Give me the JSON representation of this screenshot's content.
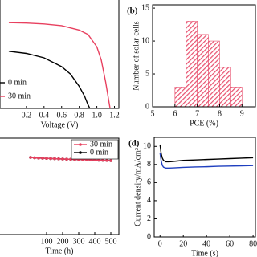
{
  "chart_data": [
    {
      "type": "line",
      "x_label": "Voltage (V)",
      "xlim": [
        -0.1,
        1.25
      ],
      "xticks": [
        0.2,
        0.4,
        0.6,
        0.8,
        {
          "value": 1,
          "label": "1.0"
        },
        1.2
      ],
      "ylim": [
        0,
        25
      ],
      "legend": "lower left",
      "series": [
        {
          "name": "0 min",
          "color": "#000000",
          "x": [
            0,
            0.2,
            0.4,
            0.6,
            0.7,
            0.8,
            0.86,
            0.9,
            0.92
          ],
          "values": [
            13,
            12.5,
            11.5,
            9.5,
            7.8,
            5,
            2.8,
            0.8,
            0
          ]
        },
        {
          "name": "30 min",
          "color": "#e8405f",
          "x": [
            0,
            0.2,
            0.4,
            0.6,
            0.8,
            0.9,
            1,
            1.05,
            1.1,
            1.15
          ],
          "values": [
            19.5,
            19.4,
            19.2,
            18.8,
            17.8,
            16.8,
            14,
            11,
            6,
            0
          ]
        }
      ]
    },
    {
      "type": "histogram",
      "label": "(b)",
      "x_label": "PCE (%)",
      "y_label": "Number of solar cells",
      "xlim": [
        5,
        9.6
      ],
      "xticks": [
        5,
        6,
        7,
        8,
        9
      ],
      "ylim": [
        0,
        15.5
      ],
      "yticks": [
        0,
        5,
        10,
        15
      ],
      "color": "#e8506e",
      "bins": [
        6,
        6.5,
        7,
        7.5,
        8,
        8.5,
        9
      ],
      "values": [
        3,
        13,
        11,
        10,
        6,
        3
      ]
    },
    {
      "type": "line",
      "x_label": "Time (h)",
      "xlim": [
        -200,
        550
      ],
      "xticks": [
        100,
        200,
        300,
        400,
        500
      ],
      "ylim": [
        0,
        1.2
      ],
      "legend": "upper right",
      "marker": "circle",
      "x": [
        0,
        25,
        50,
        75,
        100,
        125,
        150,
        175,
        200,
        225,
        250,
        275,
        300,
        325,
        350,
        375,
        400,
        425,
        450,
        475,
        500
      ],
      "series": [
        {
          "name": "30 min",
          "color": "#e8405f",
          "values": [
            0.96,
            0.955,
            0.952,
            0.95,
            0.948,
            0.946,
            0.944,
            0.942,
            0.94,
            0.938,
            0.937,
            0.935,
            0.934,
            0.933,
            0.931,
            0.93,
            0.928,
            0.926,
            0.924,
            0.922,
            0.92
          ]
        },
        {
          "name": "0 min",
          "color": "#000000",
          "values": [
            0.96,
            0.955,
            0.952,
            0.95,
            0.948,
            0.946,
            0.944,
            0.942,
            0.94,
            0.938,
            0.937,
            0.935,
            0.934,
            0.933,
            0.931,
            0.93,
            0.928,
            0.926,
            0.924,
            0.922,
            0.92
          ]
        }
      ]
    },
    {
      "type": "line",
      "label": "(d)",
      "x_label": "Time (s)",
      "y_label": "Current density/mA/cm²",
      "xlim": [
        -5,
        82
      ],
      "xticks": [
        0,
        20,
        40,
        60,
        80
      ],
      "ylim": [
        0,
        11
      ],
      "yticks": [
        0,
        2,
        4,
        6,
        8,
        10
      ],
      "x": [
        0,
        1,
        2,
        3,
        5,
        8,
        12,
        20,
        30,
        40,
        50,
        60,
        70,
        80
      ],
      "series": [
        {
          "color": "#000000",
          "values": [
            10.2,
            9.2,
            8.7,
            8.45,
            8.3,
            8.3,
            8.35,
            8.45,
            8.5,
            8.55,
            8.6,
            8.65,
            8.7,
            8.75
          ]
        },
        {
          "color": "#1f3fbf",
          "values": [
            9.3,
            8.4,
            7.9,
            7.7,
            7.6,
            7.6,
            7.62,
            7.68,
            7.72,
            7.75,
            7.8,
            7.82,
            7.85,
            7.88
          ]
        }
      ]
    }
  ]
}
